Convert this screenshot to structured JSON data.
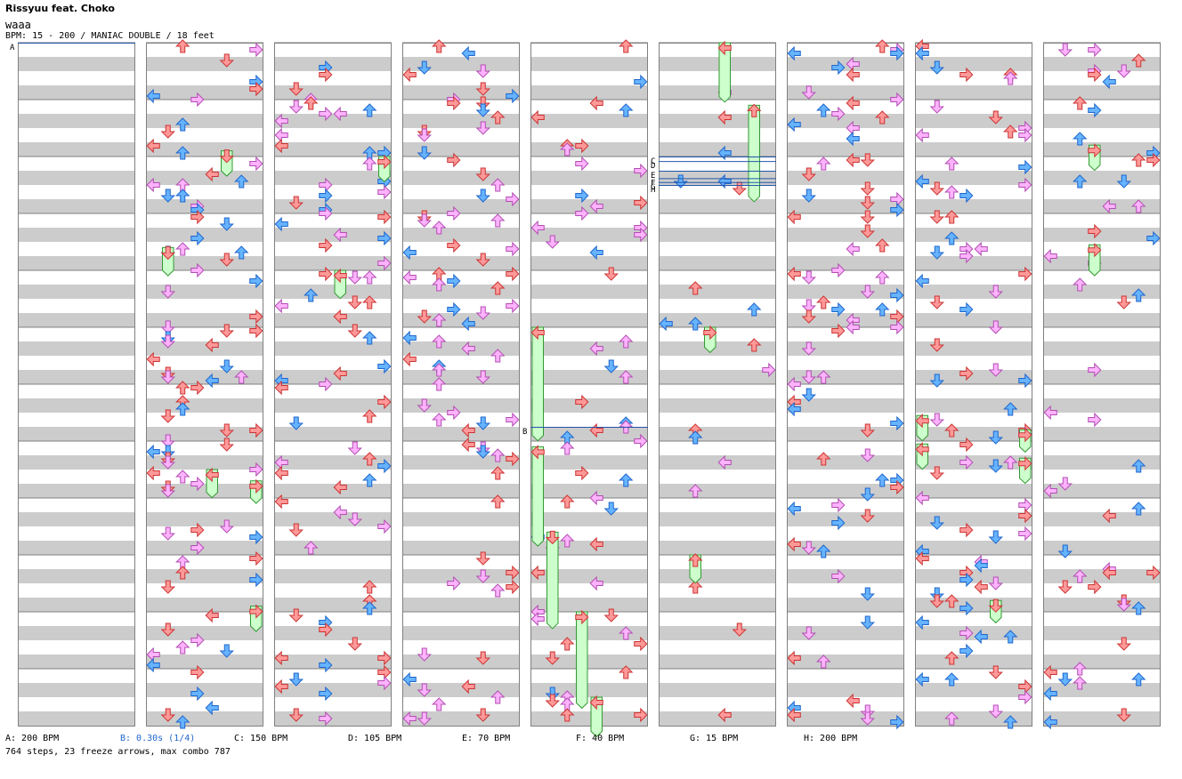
{
  "song": {
    "title": "Rissyuu feat. Choko",
    "subtitle": "waaa",
    "info": "BPM: 15 - 200 / MANIAC DOUBLE / 18 feet"
  },
  "colors": {
    "lane_gray": "#cccccc",
    "border": "#808080",
    "arrow_red": "#ff9999",
    "arrow_red_edge": "#cc3333",
    "arrow_blue": "#66b3ff",
    "arrow_blue_edge": "#1f66cc",
    "arrow_pink": "#ffb3ff",
    "arrow_pink_edge": "#b24db2",
    "arrow_green": "#33dd33",
    "freeze_fill": "#ccffcc",
    "freeze_edge": "#339933",
    "marker_line": "#2255aa"
  },
  "chart": {
    "columns": 9,
    "measures_per_column": 12,
    "lanes": 8,
    "seed": 17,
    "note_density": [
      0.0,
      0.55,
      0.5,
      0.45,
      0.38,
      0.12,
      0.5,
      0.42,
      0.25
    ],
    "empty_first_measures": 7,
    "speed_marker_labels": [
      "A",
      "B",
      "C",
      "D",
      "E",
      "F",
      "G",
      "H"
    ],
    "freezes": [
      {
        "col": 1,
        "lane": 5,
        "measure": 1.9,
        "len": 0.35
      },
      {
        "col": 1,
        "lane": 1,
        "measure": 3.6,
        "len": 0.4
      },
      {
        "col": 1,
        "lane": 4,
        "measure": 7.5,
        "len": 0.4
      },
      {
        "col": 1,
        "lane": 7,
        "measure": 7.7,
        "len": 0.3
      },
      {
        "col": 1,
        "lane": 7,
        "measure": 9.9,
        "len": 0.35
      },
      {
        "col": 2,
        "lane": 7,
        "measure": 2.0,
        "len": 0.35
      },
      {
        "col": 2,
        "lane": 4,
        "measure": 4.0,
        "len": 0.4
      },
      {
        "col": 4,
        "lane": 0,
        "measure": 5.0,
        "len": 1.9
      },
      {
        "col": 4,
        "lane": 0,
        "measure": 7.1,
        "len": 1.65
      },
      {
        "col": 4,
        "lane": 1,
        "measure": 8.6,
        "len": 1.6
      },
      {
        "col": 4,
        "lane": 3,
        "measure": 10.0,
        "len": 1.6
      },
      {
        "col": 4,
        "lane": 4,
        "measure": 11.5,
        "len": 0.6
      },
      {
        "col": 5,
        "lane": 4,
        "measure": 0.0,
        "len": 0.95
      },
      {
        "col": 5,
        "lane": 6,
        "measure": 1.1,
        "len": 1.6
      },
      {
        "col": 5,
        "lane": 3,
        "measure": 5.0,
        "len": 0.35
      },
      {
        "col": 5,
        "lane": 2,
        "measure": 9.0,
        "len": 0.4
      },
      {
        "col": 7,
        "lane": 0,
        "measure": 6.55,
        "len": 0.35
      },
      {
        "col": 7,
        "lane": 0,
        "measure": 7.05,
        "len": 0.35
      },
      {
        "col": 7,
        "lane": 7,
        "measure": 6.8,
        "len": 0.3
      },
      {
        "col": 7,
        "lane": 7,
        "measure": 7.3,
        "len": 0.35
      },
      {
        "col": 7,
        "lane": 5,
        "measure": 9.8,
        "len": 0.3
      },
      {
        "col": 8,
        "lane": 3,
        "measure": 1.8,
        "len": 0.35
      },
      {
        "col": 8,
        "lane": 3,
        "measure": 3.55,
        "len": 0.45
      }
    ],
    "markers": [
      {
        "col": 0,
        "measure": 0.0,
        "label": "A"
      },
      {
        "col": 4,
        "measure": 6.75,
        "label": "B"
      },
      {
        "col": 5,
        "measure": 2.0,
        "label": "C"
      },
      {
        "col": 5,
        "measure": 2.08,
        "label": "D"
      },
      {
        "col": 5,
        "measure": 2.25,
        "label": "E"
      },
      {
        "col": 5,
        "measure": 2.38,
        "label": "F"
      },
      {
        "col": 5,
        "measure": 2.45,
        "label": "G"
      },
      {
        "col": 5,
        "measure": 2.5,
        "label": "H"
      }
    ]
  },
  "footer": {
    "a": "A: 200 BPM",
    "b": "B: 0.30s (1/4)",
    "c": "C: 150 BPM",
    "d": "D: 105 BPM",
    "e": "E: 70 BPM",
    "f": "F: 40 BPM",
    "g": "G: 15 BPM",
    "h": "H: 200 BPM",
    "summary": "764 steps, 23 freeze arrows, max combo 787"
  }
}
